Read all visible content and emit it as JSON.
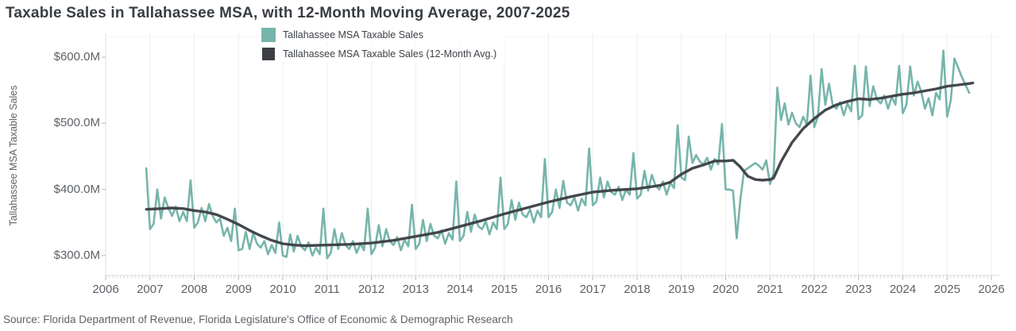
{
  "title": "Taxable Sales in Tallahassee MSA, with 12-Month Moving Average, 2007-2025",
  "source": "Source: Florida Department of Revenue, Florida Legislature's Office of Economic & Demographic Research",
  "colors": {
    "monthly_line": "#76b5ab",
    "avg_line": "#3c4045",
    "gridline": "#ededf0",
    "axis_line": "#dcdde0",
    "tick_major": "#b6b9bd",
    "tick_minor": "#d3d5d8",
    "text_dark": "#383d43",
    "text_gray": "#5c6167",
    "background": "#ffffff"
  },
  "legend": [
    {
      "label": "Tallahassee MSA Taxable Sales",
      "color": "#76b5ab"
    },
    {
      "label": "Tallahassee MSA Taxable Sales (12-Month Avg.)",
      "color": "#3c4045"
    }
  ],
  "y_axis": {
    "title": "Tallahassee MSA Taxable Sales",
    "ticks": [
      {
        "label": "$600.0M",
        "value": 600
      },
      {
        "label": "$500.0M",
        "value": 500
      },
      {
        "label": "$400.0M",
        "value": 400
      },
      {
        "label": "$300.0M",
        "value": 300
      }
    ]
  },
  "x_axis": {
    "ticks": [
      2006,
      2007,
      2008,
      2009,
      2010,
      2011,
      2012,
      2013,
      2014,
      2015,
      2016,
      2017,
      2018,
      2019,
      2020,
      2021,
      2022,
      2023,
      2024,
      2025,
      2026
    ]
  },
  "chart_data": {
    "type": "line",
    "title": "Taxable Sales in Tallahassee MSA, with 12-Month Moving Average, 2007-2025",
    "xlabel": "",
    "ylabel": "Tallahassee MSA Taxable Sales",
    "unit": "USD millions",
    "x_range": [
      2006,
      2026
    ],
    "y_tick_range": [
      300,
      600
    ],
    "grid": "vertical-years-only",
    "legend_position": "top-center",
    "series": [
      {
        "name": "Tallahassee MSA Taxable Sales",
        "color": "#76b5ab",
        "frequency": "monthly",
        "start": "2006-12",
        "end": "2025-07",
        "values": [
          432,
          340,
          348,
          400,
          356,
          388,
          372,
          360,
          374,
          352,
          366,
          352,
          414,
          342,
          350,
          372,
          352,
          378,
          360,
          350,
          356,
          330,
          342,
          322,
          371,
          308,
          310,
          336,
          310,
          334,
          318,
          312,
          322,
          302,
          316,
          304,
          350,
          300,
          298,
          332,
          306,
          330,
          314,
          308,
          320,
          300,
          312,
          302,
          371,
          296,
          304,
          340,
          310,
          334,
          316,
          310,
          322,
          304,
          318,
          308,
          371,
          302,
          312,
          346,
          314,
          340,
          322,
          316,
          328,
          308,
          324,
          314,
          377,
          310,
          318,
          354,
          322,
          348,
          330,
          326,
          338,
          318,
          334,
          324,
          412,
          322,
          330,
          366,
          336,
          362,
          344,
          340,
          352,
          332,
          350,
          340,
          418,
          340,
          348,
          384,
          354,
          380,
          362,
          358,
          370,
          350,
          368,
          358,
          446,
          358,
          366,
          400,
          372,
          413,
          380,
          376,
          388,
          368,
          386,
          376,
          462,
          376,
          382,
          418,
          388,
          412,
          396,
          392,
          404,
          384,
          400,
          392,
          455,
          386,
          392,
          428,
          398,
          422,
          406,
          400,
          412,
          392,
          410,
          402,
          497,
          418,
          414,
          480,
          440,
          452,
          442,
          438,
          448,
          430,
          446,
          438,
          499,
          400,
          400,
          398,
          326,
          386,
          428,
          432,
          436,
          440,
          436,
          430,
          444,
          408,
          424,
          554,
          505,
          530,
          498,
          516,
          500,
          494,
          510,
          498,
          572,
          494,
          510,
          582,
          528,
          560,
          528,
          522,
          532,
          512,
          530,
          518,
          587,
          506,
          512,
          586,
          526,
          556,
          536,
          530,
          542,
          522,
          540,
          528,
          587,
          515,
          528,
          586,
          542,
          563,
          548,
          522,
          538,
          512,
          546,
          536,
          610,
          510,
          535,
          598,
          584,
          570,
          558,
          546
        ]
      },
      {
        "name": "Tallahassee MSA Taxable Sales (12-Month Avg.)",
        "color": "#3c4045",
        "points": [
          [
            2006.92,
            370
          ],
          [
            2007.25,
            371
          ],
          [
            2007.5,
            372
          ],
          [
            2007.75,
            371
          ],
          [
            2008.0,
            368
          ],
          [
            2008.25,
            366
          ],
          [
            2008.5,
            362
          ],
          [
            2008.75,
            355
          ],
          [
            2009.0,
            347
          ],
          [
            2009.25,
            338
          ],
          [
            2009.5,
            330
          ],
          [
            2009.75,
            323
          ],
          [
            2010.0,
            318
          ],
          [
            2010.25,
            316
          ],
          [
            2010.5,
            315
          ],
          [
            2011.0,
            316
          ],
          [
            2011.5,
            317
          ],
          [
            2012.0,
            319
          ],
          [
            2012.5,
            323
          ],
          [
            2013.0,
            329
          ],
          [
            2013.5,
            335
          ],
          [
            2014.0,
            344
          ],
          [
            2014.5,
            353
          ],
          [
            2015.0,
            363
          ],
          [
            2015.5,
            372
          ],
          [
            2016.0,
            381
          ],
          [
            2016.5,
            389
          ],
          [
            2017.0,
            396
          ],
          [
            2017.5,
            399
          ],
          [
            2018.0,
            401
          ],
          [
            2018.5,
            406
          ],
          [
            2018.75,
            411
          ],
          [
            2019.0,
            423
          ],
          [
            2019.25,
            432
          ],
          [
            2019.5,
            437
          ],
          [
            2019.75,
            443
          ],
          [
            2020.0,
            443
          ],
          [
            2020.17,
            444
          ],
          [
            2020.33,
            434
          ],
          [
            2020.5,
            420
          ],
          [
            2020.67,
            415
          ],
          [
            2020.83,
            414
          ],
          [
            2021.0,
            415
          ],
          [
            2021.08,
            417
          ],
          [
            2021.25,
            442
          ],
          [
            2021.5,
            471
          ],
          [
            2021.75,
            492
          ],
          [
            2022.0,
            507
          ],
          [
            2022.25,
            520
          ],
          [
            2022.5,
            528
          ],
          [
            2022.75,
            533
          ],
          [
            2023.0,
            537
          ],
          [
            2023.25,
            536
          ],
          [
            2023.5,
            538
          ],
          [
            2023.75,
            541
          ],
          [
            2024.0,
            544
          ],
          [
            2024.25,
            546
          ],
          [
            2024.5,
            549
          ],
          [
            2024.75,
            552
          ],
          [
            2025.0,
            556
          ],
          [
            2025.25,
            558
          ],
          [
            2025.5,
            560
          ],
          [
            2025.58,
            561
          ]
        ]
      }
    ]
  }
}
